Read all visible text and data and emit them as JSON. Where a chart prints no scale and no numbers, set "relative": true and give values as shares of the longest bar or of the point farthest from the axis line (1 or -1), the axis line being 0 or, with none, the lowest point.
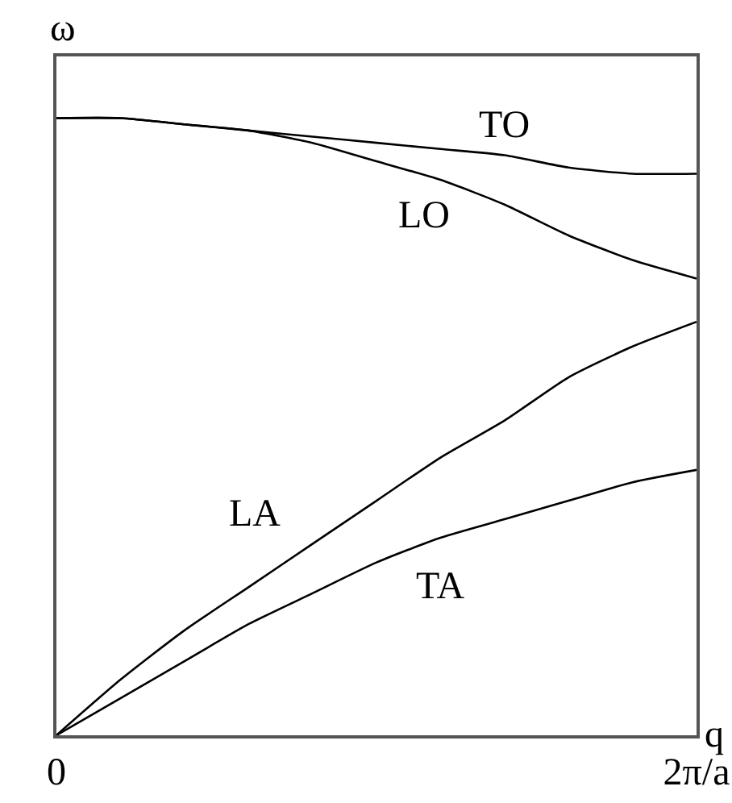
{
  "chart_data": {
    "type": "line",
    "relative": true,
    "xlabel": "q",
    "ylabel": "ω",
    "categories": [
      "0",
      null,
      null,
      null,
      null,
      null,
      null,
      null,
      null,
      null,
      "2π/a"
    ],
    "legend": false,
    "marker": "none",
    "line_style": "solid",
    "series": [
      {
        "name": "TO",
        "color": "#000000",
        "values": [
          1,
          1,
          0.99,
          0.98,
          0.97,
          0.96,
          0.95,
          0.94,
          0.92,
          0.91,
          0.91
        ]
      },
      {
        "name": "LO",
        "color": "#000000",
        "values": [
          1,
          1,
          0.99,
          0.98,
          0.96,
          0.93,
          0.9,
          0.86,
          0.81,
          0.77,
          0.74
        ]
      },
      {
        "name": "LA",
        "color": "#000000",
        "values": [
          0,
          0.09,
          0.17,
          0.24,
          0.31,
          0.38,
          0.45,
          0.51,
          0.58,
          0.63,
          0.67
        ]
      },
      {
        "name": "TA",
        "color": "#000000",
        "values": [
          0,
          0.06,
          0.12,
          0.18,
          0.23,
          0.28,
          0.32,
          0.35,
          0.38,
          0.41,
          0.43
        ]
      }
    ]
  }
}
